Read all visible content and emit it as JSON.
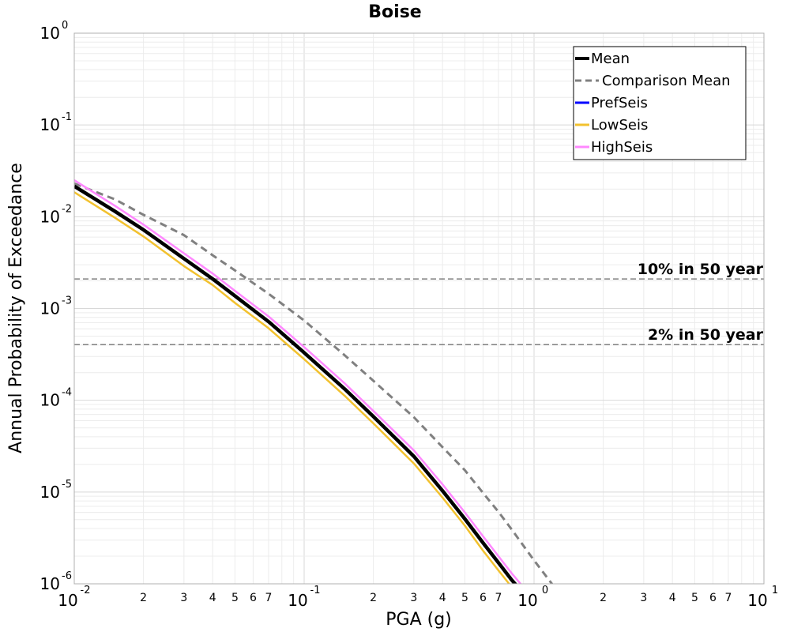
{
  "chart_data": {
    "type": "line",
    "title": "Boise",
    "xlabel": "PGA (g)",
    "ylabel": "Annual Probability of Exceedance",
    "xscale": "log",
    "yscale": "log",
    "xlim": [
      0.01,
      10
    ],
    "ylim": [
      1e-06,
      1
    ],
    "grid": true,
    "legend_position": "top-right",
    "x_major_ticks": [
      {
        "base": "10",
        "exp": "-2"
      },
      {
        "base": "10",
        "exp": "-1"
      },
      {
        "base": "10",
        "exp": "0"
      },
      {
        "base": "10",
        "exp": "1"
      }
    ],
    "y_major_ticks": [
      {
        "base": "10",
        "exp": "0"
      },
      {
        "base": "10",
        "exp": "-1"
      },
      {
        "base": "10",
        "exp": "-2"
      },
      {
        "base": "10",
        "exp": "-3"
      },
      {
        "base": "10",
        "exp": "-4"
      },
      {
        "base": "10",
        "exp": "-5"
      },
      {
        "base": "10",
        "exp": "-6"
      }
    ],
    "x_minor_tick_labels": [
      "2",
      "3",
      "4",
      "5",
      "6",
      "7"
    ],
    "reference_lines": [
      {
        "label": "10% in 50 year",
        "y": 0.0021
      },
      {
        "label": "2% in 50 year",
        "y": 0.000404
      }
    ],
    "series": [
      {
        "name": "Mean",
        "color": "#000000",
        "dash": "solid",
        "x": [
          0.01,
          0.015,
          0.02,
          0.03,
          0.04,
          0.05,
          0.07,
          0.1,
          0.15,
          0.2,
          0.3,
          0.4,
          0.5,
          0.6,
          0.7,
          0.8,
          0.9
        ],
        "y": [
          0.0215,
          0.0115,
          0.0072,
          0.0035,
          0.0021,
          0.00137,
          0.00072,
          0.00033,
          0.000133,
          6.65e-05,
          2.45e-05,
          1.03e-05,
          5.1e-06,
          2.8e-06,
          1.7e-06,
          1.1e-06,
          7.8e-07
        ]
      },
      {
        "name": "Comparison Mean",
        "color": "#808080",
        "dash": "dashed",
        "x": [
          0.01,
          0.015,
          0.02,
          0.03,
          0.04,
          0.05,
          0.07,
          0.1,
          0.15,
          0.2,
          0.3,
          0.4,
          0.5,
          0.6,
          0.7,
          0.8,
          1.0,
          1.2
        ],
        "y": [
          0.023,
          0.0155,
          0.0105,
          0.0063,
          0.0038,
          0.0026,
          0.00145,
          0.00074,
          0.00031,
          0.000163,
          6.55e-05,
          3.08e-05,
          1.73e-05,
          9.8e-06,
          6.1e-06,
          3.9e-06,
          1.8e-06,
          9.9e-07
        ]
      },
      {
        "name": "PrefSeis",
        "color": "#0000ff",
        "dash": "solid",
        "x": [
          0.01,
          0.015,
          0.02,
          0.03,
          0.04,
          0.05,
          0.07,
          0.1,
          0.15,
          0.2,
          0.3,
          0.4,
          0.5,
          0.6,
          0.7,
          0.8,
          0.9
        ],
        "y": [
          0.0215,
          0.0115,
          0.0072,
          0.0035,
          0.0021,
          0.00137,
          0.00072,
          0.00033,
          0.000133,
          6.65e-05,
          2.45e-05,
          1.03e-05,
          5.1e-06,
          2.8e-06,
          1.7e-06,
          1.1e-06,
          7.8e-07
        ]
      },
      {
        "name": "LowSeis",
        "color": "#f2c12e",
        "dash": "solid",
        "x": [
          0.01,
          0.015,
          0.02,
          0.03,
          0.04,
          0.05,
          0.07,
          0.1,
          0.15,
          0.2,
          0.3,
          0.4,
          0.5,
          0.6,
          0.7,
          0.8,
          0.87
        ],
        "y": [
          0.0185,
          0.0098,
          0.0061,
          0.0029,
          0.0018,
          0.00115,
          0.00061,
          0.00028,
          0.000112,
          5.6e-05,
          2.05e-05,
          8.7e-06,
          4.3e-06,
          2.3e-06,
          1.4e-06,
          9.2e-07,
          7.3e-07
        ]
      },
      {
        "name": "HighSeis",
        "color": "#ff88ff",
        "dash": "solid",
        "x": [
          0.01,
          0.015,
          0.02,
          0.03,
          0.04,
          0.05,
          0.07,
          0.1,
          0.15,
          0.2,
          0.3,
          0.4,
          0.5,
          0.6,
          0.7,
          0.8,
          0.95
        ],
        "y": [
          0.025,
          0.0132,
          0.0082,
          0.004,
          0.0024,
          0.00156,
          0.00082,
          0.00038,
          0.000153,
          7.65e-05,
          2.85e-05,
          1.21e-05,
          6e-06,
          3.3e-06,
          2e-06,
          1.3e-06,
          7.8e-07
        ]
      }
    ]
  }
}
